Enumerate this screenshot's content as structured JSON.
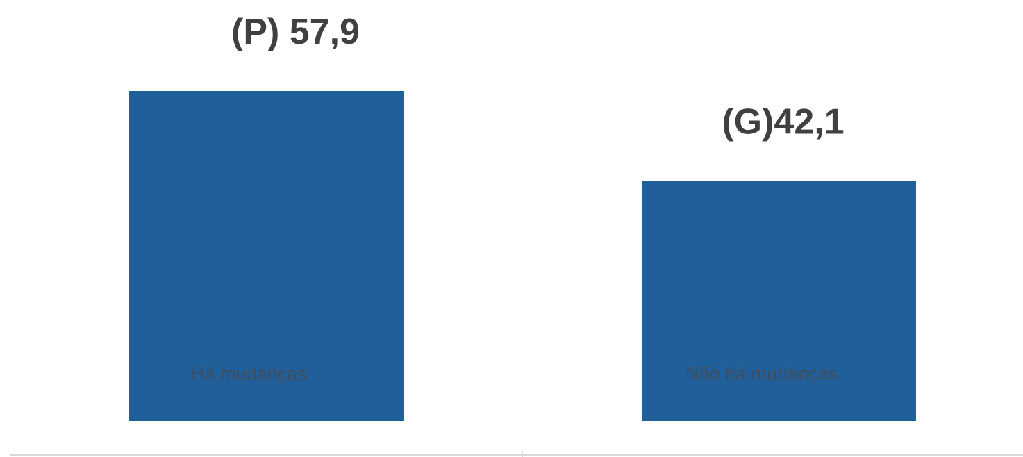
{
  "chart_data": {
    "type": "bar",
    "categories": [
      "Há mudanças",
      "Não há mudanças"
    ],
    "values": [
      57.9,
      42.1
    ],
    "data_labels": [
      "(P) 57,9",
      "(G)42,1"
    ],
    "title": "",
    "xlabel": "",
    "ylabel": "",
    "ylim": [
      0,
      57.9
    ],
    "grid": false,
    "legend": "none",
    "colors": {
      "bar": "#215F9A",
      "value_label": "#404040",
      "category_label": "#3F4F5F",
      "axis_line": "#D9D9D9"
    }
  }
}
